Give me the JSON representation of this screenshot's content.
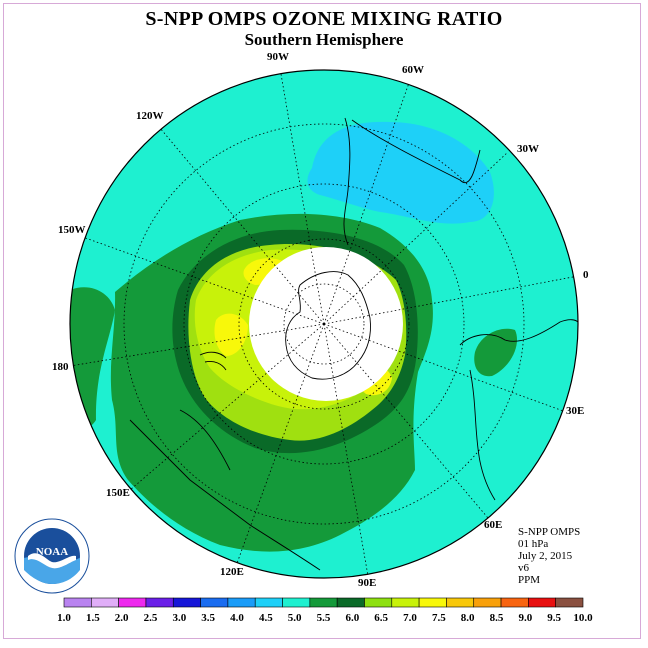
{
  "header": {
    "title": "S-NPP OMPS OZONE MIXING RATIO",
    "subtitle": "Southern Hemisphere"
  },
  "map": {
    "longitude_labels": [
      "90W",
      "60W",
      "30W",
      "0",
      "30E",
      "60E",
      "90E",
      "120E",
      "150E",
      "180",
      "150W",
      "120W"
    ]
  },
  "info": {
    "line1": "S-NPP OMPS",
    "line2": "01 hPa",
    "line3": "July 2, 2015",
    "line4": "v6",
    "line5": "PPM"
  },
  "logo": {
    "text": "NOAA",
    "icon": "noaa-logo-icon"
  },
  "colorbar": {
    "labels": [
      "1.0",
      "1.5",
      "2.0",
      "2.5",
      "3.0",
      "3.5",
      "4.0",
      "4.5",
      "5.0",
      "5.5",
      "6.0",
      "6.5",
      "7.0",
      "7.5",
      "8.0",
      "8.5",
      "9.0",
      "9.5",
      "10.0"
    ],
    "colors": [
      "#b983f0",
      "#e0aef8",
      "#ee28ee",
      "#6a1fe8",
      "#1616d8",
      "#1a6cf0",
      "#1a9cf8",
      "#1ed0f8",
      "#1ef0d0",
      "#149a3a",
      "#0a6a28",
      "#8ee010",
      "#c8f20a",
      "#f8f80a",
      "#f8c80a",
      "#f8a00a",
      "#f86410",
      "#e81010",
      "#8a5040"
    ]
  }
}
